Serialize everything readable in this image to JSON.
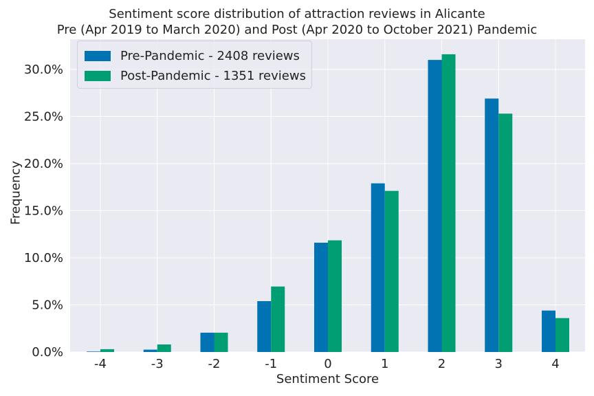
{
  "chart_data": {
    "type": "bar",
    "title": "Sentiment score distribution of attraction reviews in Alicante",
    "subtitle": "Pre (Apr 2019 to March 2020) and Post (Apr 2020 to October 2021) Pandemic",
    "xlabel": "Sentiment Score",
    "ylabel": "Frequency",
    "categories": [
      "-4",
      "-3",
      "-2",
      "-1",
      "0",
      "1",
      "2",
      "3",
      "4"
    ],
    "series": [
      {
        "name": "Pre-Pandemic - 2408 reviews",
        "color": "#0173b2",
        "values": [
          0.05,
          0.25,
          2.05,
          5.4,
          11.6,
          17.9,
          31.0,
          26.9,
          4.4
        ]
      },
      {
        "name": "Post-Pandemic - 1351 reviews",
        "color": "#029e73",
        "values": [
          0.3,
          0.8,
          2.05,
          6.95,
          11.85,
          17.1,
          31.6,
          25.3,
          3.6
        ]
      }
    ],
    "yticks": [
      "0.0%",
      "5.0%",
      "10.0%",
      "15.0%",
      "20.0%",
      "25.0%",
      "30.0%"
    ],
    "ytick_values": [
      0,
      5,
      10,
      15,
      20,
      25,
      30
    ],
    "ylim": [
      0,
      33.2
    ],
    "grid": true,
    "legend_position": "top-left",
    "plot_background": "#eaeaf2",
    "grid_color": "#ffffff"
  }
}
